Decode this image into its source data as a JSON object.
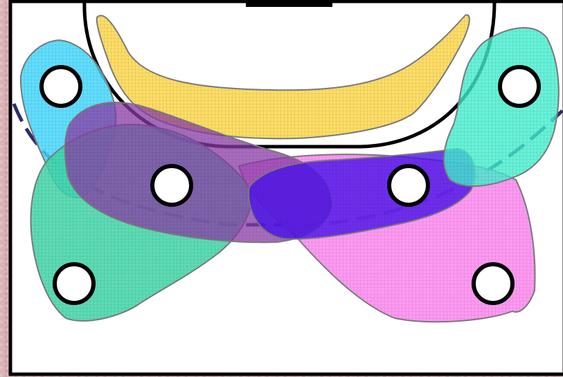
{
  "diagram": {
    "colors": {
      "page_background": "#d9b2b6",
      "field_background": "#ffffff",
      "border": "#000000",
      "region_outline": "#7a7a7a",
      "dashed_arc": "#2d2d6b"
    },
    "regions": [
      {
        "id": "region-yellow",
        "color": "#ffd84a",
        "opacity": 0.85
      },
      {
        "id": "region-cyan",
        "color": "#44d8ff",
        "opacity": 0.85
      },
      {
        "id": "region-green",
        "color": "#3ed6a8",
        "opacity": 0.85
      },
      {
        "id": "region-purple",
        "color": "#8a3aa8",
        "opacity": 0.75
      },
      {
        "id": "region-pink",
        "color": "#ff80f0",
        "opacity": 0.8
      },
      {
        "id": "region-blue",
        "color": "#4a10ee",
        "opacity": 0.8
      },
      {
        "id": "region-teal",
        "color": "#40f0d0",
        "opacity": 0.8
      }
    ],
    "markers": [
      {
        "id": "marker-top-left"
      },
      {
        "id": "marker-top-right"
      },
      {
        "id": "marker-mid-left"
      },
      {
        "id": "marker-mid-right"
      },
      {
        "id": "marker-bottom-left"
      },
      {
        "id": "marker-bottom-right"
      }
    ]
  }
}
